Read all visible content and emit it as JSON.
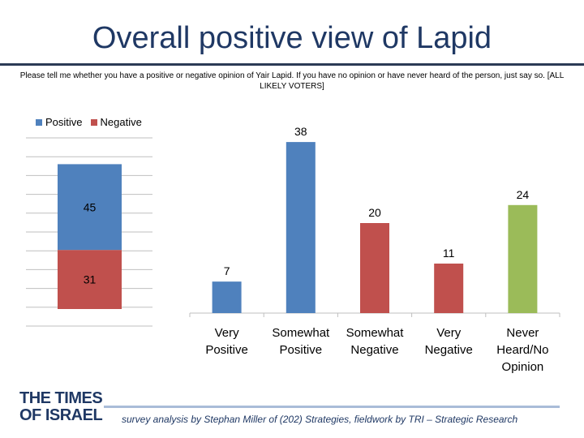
{
  "title": "Overall positive view of Lapid",
  "subtitle": "Please tell me whether you have a positive or negative opinion of Yair Lapid. If you have no opinion or have never heard of the person, just say so. [ALL LIKELY VOTERS]",
  "logo": {
    "line1": "THE TIMES",
    "line2": "OF ISRAEL"
  },
  "credit": "survey analysis by Stephan Miller of (202) Strategies, fieldwork by TRI – Strategic Research",
  "colors": {
    "positive": "#4f81bd",
    "negative": "#c0504d",
    "neutral": "#9bbb59",
    "title": "#1f3864"
  },
  "chart_data": [
    {
      "type": "bar",
      "stacked": true,
      "categories": [
        ""
      ],
      "series": [
        {
          "name": "Positive",
          "values": [
            45
          ]
        },
        {
          "name": "Negative",
          "values": [
            31
          ]
        }
      ],
      "legend": "top-left",
      "grid": true
    },
    {
      "type": "bar",
      "categories": [
        "Very Positive",
        "Somewhat Positive",
        "Somewhat Negative",
        "Very Negative",
        "Never Heard/No Opinion"
      ],
      "values": [
        7,
        38,
        20,
        11,
        24
      ],
      "bar_colors": [
        "#4f81bd",
        "#4f81bd",
        "#c0504d",
        "#c0504d",
        "#9bbb59"
      ],
      "category_lines": [
        [
          "Very",
          "Positive"
        ],
        [
          "Somewhat",
          "Positive"
        ],
        [
          "Somewhat",
          "Negative"
        ],
        [
          "Very",
          "Negative"
        ],
        [
          "Never",
          "Heard/No",
          "Opinion"
        ]
      ],
      "grid": false
    }
  ]
}
